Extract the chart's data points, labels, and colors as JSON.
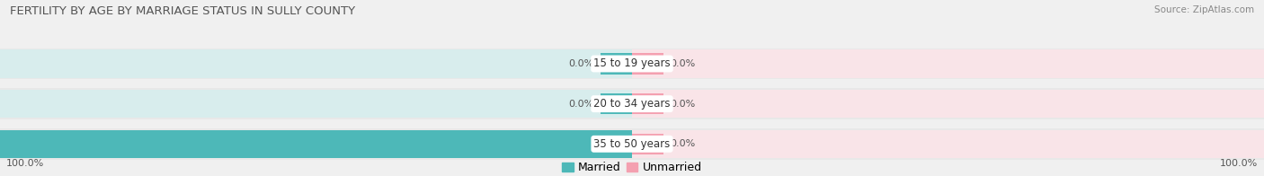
{
  "title": "FERTILITY BY AGE BY MARRIAGE STATUS IN SULLY COUNTY",
  "source": "Source: ZipAtlas.com",
  "categories": [
    "15 to 19 years",
    "20 to 34 years",
    "35 to 50 years"
  ],
  "married_values": [
    0.0,
    0.0,
    100.0
  ],
  "unmarried_values": [
    0.0,
    0.0,
    0.0
  ],
  "married_color": "#4db8b8",
  "unmarried_color": "#f4a0b0",
  "bar_bg_left_color": "#d8eded",
  "bar_bg_right_color": "#f9e4e8",
  "fig_bg_color": "#f0f0f0",
  "bar_row_bg": "#e8e8e8",
  "title_fontsize": 9.5,
  "source_fontsize": 7.5,
  "category_fontsize": 8.5,
  "value_fontsize": 8,
  "legend_fontsize": 9,
  "axis_label_fontsize": 8
}
